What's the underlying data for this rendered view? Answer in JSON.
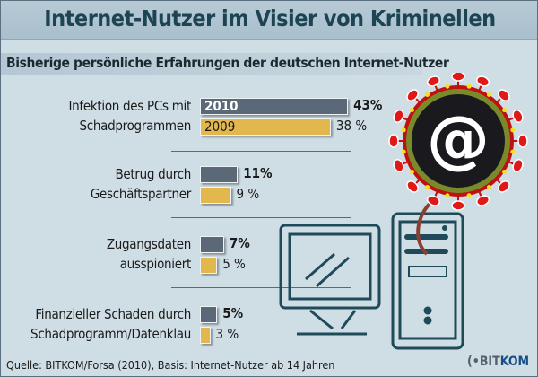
{
  "title": "Internet-Nutzer im Visier von Kriminellen",
  "subtitle": "Bisherige persönliche Erfahrungen der deutschen Internet-Nutzer",
  "source": "Quelle: BITKOM/Forsa (2010), Basis: Internet-Nutzer ab 14 Jahren",
  "logo": {
    "prefix": "BIT",
    "suffix": "KOM"
  },
  "icon_label": "@",
  "chart_data": {
    "type": "bar",
    "orientation": "horizontal",
    "title": "Internet-Nutzer im Visier von Kriminellen",
    "subtitle": "Bisherige persönliche Erfahrungen der deutschen Internet-Nutzer",
    "categories": [
      [
        "Infektion des PCs mit",
        "Schadprogrammen"
      ],
      [
        "Betrug durch",
        "Geschäftspartner"
      ],
      [
        "Zugangsdaten",
        "ausspioniert"
      ],
      [
        "Finanzieller Schaden durch",
        "Schadprogramm/Datenklau"
      ]
    ],
    "series": [
      {
        "name": "2010",
        "values": [
          43,
          11,
          7,
          5
        ],
        "labels": [
          "43%",
          "11%",
          "7%",
          "5%"
        ],
        "color": "#5b6878"
      },
      {
        "name": "2009",
        "values": [
          38,
          9,
          5,
          3
        ],
        "labels": [
          "38 %",
          "9 %",
          "5 %",
          "3 %"
        ],
        "color": "#e2b84e"
      }
    ],
    "unit": "%",
    "grid": false,
    "legend": "inline in first bars"
  }
}
